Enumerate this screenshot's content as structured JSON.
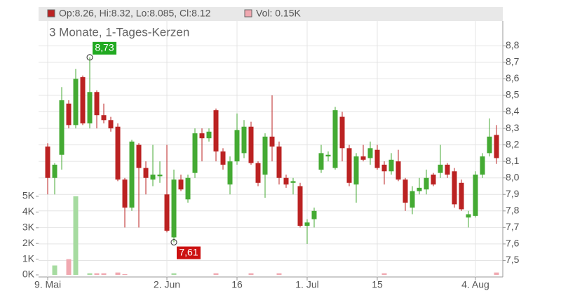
{
  "chart_data": {
    "type": "candlestick",
    "subtitle": "3 Monate, 1-Tages-Kerzen",
    "legend": {
      "ohlc": "Op:8.26, Hi:8.32, Lo:8.085, Cl:8.12",
      "volume": "Vol: 0.15K"
    },
    "up_color": "#44aa33",
    "down_color": "#bb2222",
    "volume_up_color": "#a6dba0",
    "volume_down_color": "#f0a8b0",
    "categories": [
      "9. Mai",
      null,
      null,
      null,
      null,
      null,
      null,
      null,
      null,
      null,
      null,
      null,
      null,
      null,
      null,
      null,
      null,
      "2. Jun",
      null,
      null,
      null,
      null,
      null,
      null,
      null,
      null,
      null,
      "16",
      null,
      null,
      null,
      null,
      null,
      null,
      null,
      null,
      null,
      "1. Jul",
      null,
      null,
      null,
      null,
      null,
      null,
      null,
      null,
      null,
      "15",
      null,
      null,
      null,
      null,
      null,
      null,
      null,
      null,
      null,
      null,
      null,
      null,
      null,
      "4. Aug",
      null,
      null,
      null
    ],
    "open": [
      8.19,
      8.0,
      8.14,
      8.45,
      8.32,
      8.61,
      8.33,
      8.52,
      8.38,
      8.35,
      8.31,
      7.99,
      7.82,
      8.2,
      8.06,
      7.99,
      8.01,
      7.9,
      7.64,
      7.99,
      7.87,
      8.03,
      8.27,
      8.24,
      8.41,
      8.16,
      7.96,
      8.1,
      8.15,
      8.31,
      8.09,
      8.02,
      8.25,
      8.19,
      8.0,
      7.97,
      7.95,
      7.71,
      7.75,
      8.05,
      8.13,
      8.06,
      8.37,
      8.18,
      7.96,
      8.13,
      8.12,
      8.17,
      8.08,
      8.04,
      8.1,
      7.99,
      7.82,
      7.92,
      7.93,
      8.02,
      8.03,
      8.08,
      8.04,
      7.97,
      7.76,
      7.77,
      8.02,
      8.15,
      8.26
    ],
    "high": [
      8.21,
      8.09,
      8.55,
      8.47,
      8.66,
      8.62,
      8.73,
      8.53,
      8.45,
      8.37,
      8.33,
      8.0,
      8.23,
      8.21,
      8.1,
      8.2,
      8.1,
      8.2,
      8.05,
      8.02,
      8.02,
      8.3,
      8.3,
      8.3,
      8.42,
      8.18,
      8.13,
      8.39,
      8.35,
      8.34,
      8.1,
      8.27,
      8.5,
      8.22,
      8.02,
      8.0,
      7.97,
      7.75,
      7.82,
      8.2,
      8.16,
      8.43,
      8.4,
      8.2,
      8.15,
      8.2,
      8.22,
      8.2,
      8.1,
      8.15,
      8.17,
      8.0,
      7.95,
      8.0,
      8.05,
      8.03,
      8.2,
      8.09,
      8.06,
      7.99,
      7.8,
      8.04,
      8.15,
      8.36,
      8.32
    ],
    "low": [
      7.9,
      7.9,
      8.05,
      8.3,
      8.3,
      8.32,
      8.3,
      8.3,
      8.33,
      8.28,
      7.98,
      7.7,
      7.8,
      7.7,
      7.9,
      7.95,
      7.97,
      7.67,
      7.61,
      7.92,
      7.85,
      8.0,
      8.1,
      8.22,
      8.1,
      8.05,
      7.9,
      8.08,
      8.12,
      8.08,
      7.95,
      7.88,
      8.1,
      7.96,
      7.94,
      7.9,
      7.7,
      7.6,
      7.7,
      8.03,
      8.1,
      8.05,
      8.1,
      7.95,
      7.85,
      8.1,
      8.08,
      8.05,
      7.96,
      8.02,
      7.98,
      7.8,
      7.78,
      7.9,
      7.9,
      7.95,
      8.0,
      8.0,
      7.82,
      7.8,
      7.7,
      7.76,
      8.0,
      8.13,
      8.085
    ],
    "close": [
      8.0,
      8.08,
      8.47,
      8.32,
      8.6,
      8.33,
      8.52,
      8.38,
      8.35,
      8.3,
      7.99,
      7.82,
      8.22,
      8.06,
      8.0,
      8.02,
      8.02,
      7.68,
      7.99,
      7.93,
      8.0,
      8.27,
      8.24,
      8.28,
      8.16,
      8.08,
      8.1,
      8.29,
      8.31,
      8.09,
      7.97,
      8.25,
      8.19,
      8.0,
      7.96,
      7.98,
      7.71,
      7.73,
      7.8,
      8.15,
      8.14,
      8.41,
      8.18,
      7.97,
      8.13,
      8.11,
      8.18,
      8.06,
      8.04,
      8.11,
      7.99,
      7.85,
      7.92,
      7.94,
      8.0,
      7.96,
      8.08,
      8.02,
      7.84,
      7.81,
      7.78,
      8.02,
      8.13,
      8.25,
      8.12
    ],
    "volume": [
      0,
      0.6,
      0,
      1.0,
      5.0,
      0,
      0.1,
      0.1,
      0.1,
      0,
      0.15,
      0.05,
      0,
      0,
      0,
      0,
      0,
      0,
      0.1,
      0,
      0,
      0,
      0,
      0,
      0.1,
      0,
      0,
      0,
      0,
      0.1,
      0,
      0,
      0,
      0.1,
      0,
      0,
      0,
      0,
      0,
      0,
      0,
      0,
      0,
      0,
      0,
      0,
      0,
      0,
      0.1,
      0,
      0,
      0,
      0,
      0,
      0,
      0,
      0,
      0,
      0,
      0,
      0,
      0,
      0,
      0,
      0.15
    ],
    "ylim": [
      7.4,
      8.95
    ],
    "yticks": [
      {
        "value": 7.5,
        "label": "7,5"
      },
      {
        "value": 7.6,
        "label": "7,6"
      },
      {
        "value": 7.7,
        "label": "7,7"
      },
      {
        "value": 7.8,
        "label": "7,8"
      },
      {
        "value": 7.9,
        "label": "7,9"
      },
      {
        "value": 8.0,
        "label": "8,0"
      },
      {
        "value": 8.1,
        "label": "8,1"
      },
      {
        "value": 8.2,
        "label": "8,2"
      },
      {
        "value": 8.3,
        "label": "8,3"
      },
      {
        "value": 8.4,
        "label": "8,4"
      },
      {
        "value": 8.5,
        "label": "8,5"
      },
      {
        "value": 8.6,
        "label": "8,6"
      },
      {
        "value": 8.7,
        "label": "8,7"
      },
      {
        "value": 8.8,
        "label": "8,8"
      }
    ],
    "volume_lim": [
      0,
      5
    ],
    "volume_ticks": [
      {
        "value": 0,
        "label": "0K"
      },
      {
        "value": 1,
        "label": "1K"
      },
      {
        "value": 2,
        "label": "2K"
      },
      {
        "value": 3,
        "label": "3K"
      },
      {
        "value": 4,
        "label": "4K"
      },
      {
        "value": 5,
        "label": "5K"
      }
    ],
    "annotations": [
      {
        "text": "8,73",
        "index": 6,
        "value": 8.73,
        "color": "#22aa22"
      },
      {
        "text": "7,61",
        "index": 18,
        "value": 7.61,
        "color": "#cc1111"
      }
    ],
    "grid": true
  }
}
